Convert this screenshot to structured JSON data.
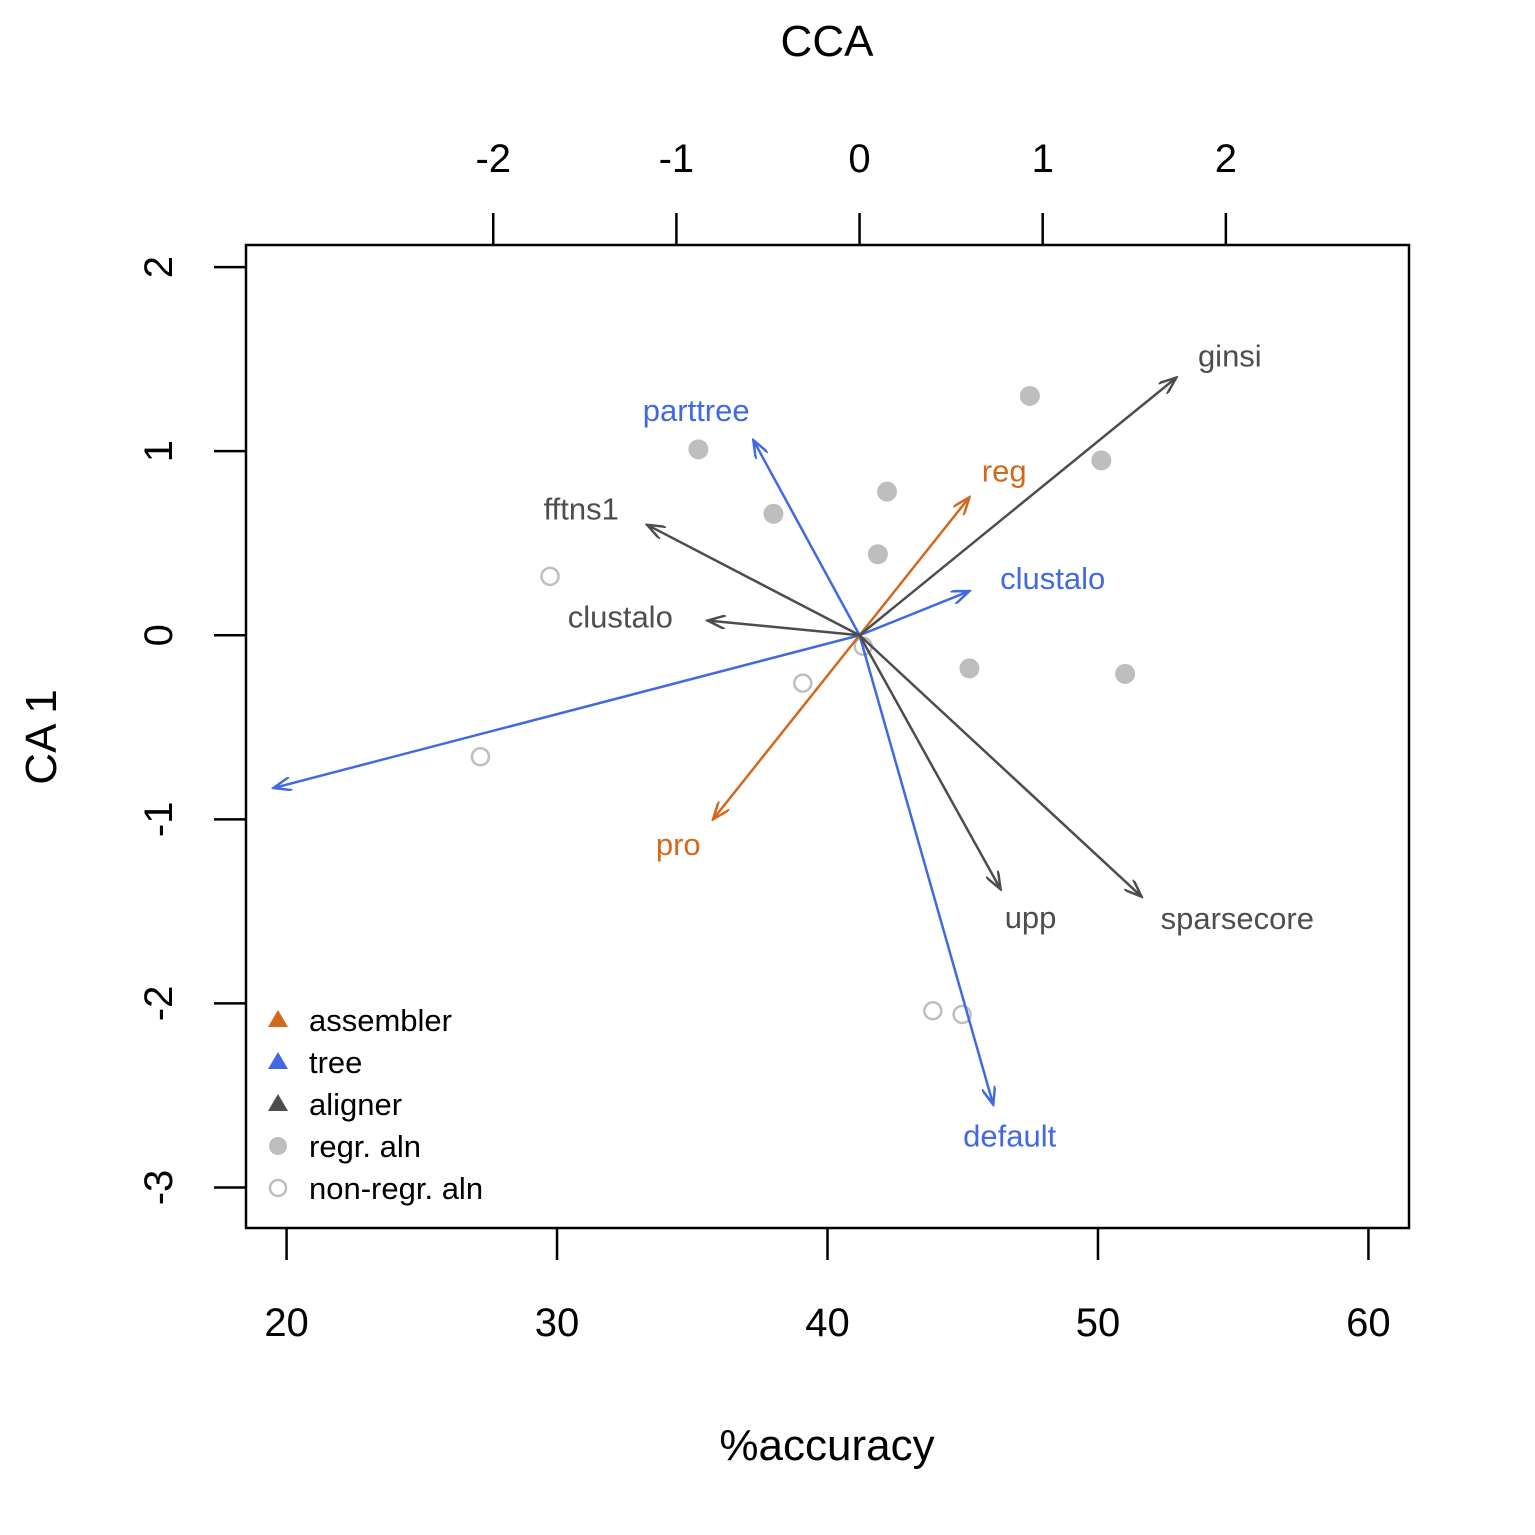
{
  "chart_data": {
    "type": "scatter",
    "title": "CCA",
    "xlabel": "%accuracy",
    "ylabel": "CA 1",
    "x_bottom": {
      "ticks": [
        20,
        30,
        40,
        50,
        60
      ],
      "tick_labels": [
        "20",
        "30",
        "40",
        "50",
        "60"
      ],
      "range": [
        18.5,
        61.5
      ]
    },
    "x_top": {
      "ticks": [
        -2,
        -1,
        0,
        1,
        2
      ],
      "tick_labels": [
        "-2",
        "-1",
        "0",
        "1",
        "2"
      ],
      "range": [
        -3.35,
        3.0
      ]
    },
    "y_left": {
      "ticks": [
        2,
        1,
        0,
        -1,
        -2,
        -3
      ],
      "tick_labels": [
        "2",
        "1",
        "0",
        "-1",
        "-2",
        "-3"
      ],
      "range": [
        -3.22,
        2.12
      ]
    },
    "grid": false,
    "legend_position": "bottom-left",
    "colors": {
      "assembler": "#d2691e",
      "tree": "#4169e1",
      "aligner": "#4d4d4d",
      "regr": "#bebebe",
      "nonregr": "#bebebe"
    },
    "legend": [
      {
        "label": "assembler",
        "symbol": "triangle",
        "color": "#d2691e"
      },
      {
        "label": "tree",
        "symbol": "triangle",
        "color": "#4169e1"
      },
      {
        "label": "aligner",
        "symbol": "triangle",
        "color": "#4d4d4d"
      },
      {
        "label": "regr. aln",
        "symbol": "filled-circle",
        "color": "#bebebe"
      },
      {
        "label": "non-regr. aln",
        "symbol": "open-circle",
        "color": "#bebebe"
      }
    ],
    "origin": {
      "cca": 0.0,
      "ca1": 0.0
    },
    "vectors": [
      {
        "label": "reg",
        "group": "assembler",
        "cca": 0.6,
        "ca1": 0.75
      },
      {
        "label": "pro",
        "group": "assembler",
        "cca": -0.8,
        "ca1": -1.0
      },
      {
        "label": "parttree",
        "group": "tree",
        "cca": -0.58,
        "ca1": 1.06
      },
      {
        "label": "clustalo",
        "group": "tree",
        "cca": 0.6,
        "ca1": 0.24
      },
      {
        "label": "",
        "group": "tree",
        "cca": -3.2,
        "ca1": -0.83
      },
      {
        "label": "default",
        "group": "tree",
        "cca": 0.73,
        "ca1": -2.55
      },
      {
        "label": "ginsi",
        "group": "aligner",
        "cca": 1.73,
        "ca1": 1.4
      },
      {
        "label": "fftns1",
        "group": "aligner",
        "cca": -1.16,
        "ca1": 0.6
      },
      {
        "label": "clustalo",
        "group": "aligner",
        "cca": -0.83,
        "ca1": 0.08
      },
      {
        "label": "upp",
        "group": "aligner",
        "cca": 0.77,
        "ca1": -1.38
      },
      {
        "label": "sparsecore",
        "group": "aligner",
        "cca": 1.54,
        "ca1": -1.42
      }
    ],
    "series": [
      {
        "name": "regr. aln",
        "marker": "filled-circle",
        "points": [
          {
            "cca": -0.88,
            "ca1": 1.01
          },
          {
            "cca": -0.47,
            "ca1": 0.66
          },
          {
            "cca": 0.1,
            "ca1": 0.44
          },
          {
            "cca": 0.15,
            "ca1": 0.78
          },
          {
            "cca": 0.93,
            "ca1": 1.3
          },
          {
            "cca": 1.32,
            "ca1": 0.95
          },
          {
            "cca": 0.6,
            "ca1": -0.18
          },
          {
            "cca": 1.45,
            "ca1": -0.21
          }
        ]
      },
      {
        "name": "non-regr. aln",
        "marker": "open-circle",
        "points": [
          {
            "cca": -1.69,
            "ca1": 0.32
          },
          {
            "cca": -2.07,
            "ca1": -0.66
          },
          {
            "cca": -0.31,
            "ca1": -0.26
          },
          {
            "cca": 0.02,
            "ca1": -0.06
          },
          {
            "cca": 0.4,
            "ca1": -2.04
          },
          {
            "cca": 0.56,
            "ca1": -2.06
          }
        ]
      }
    ]
  }
}
